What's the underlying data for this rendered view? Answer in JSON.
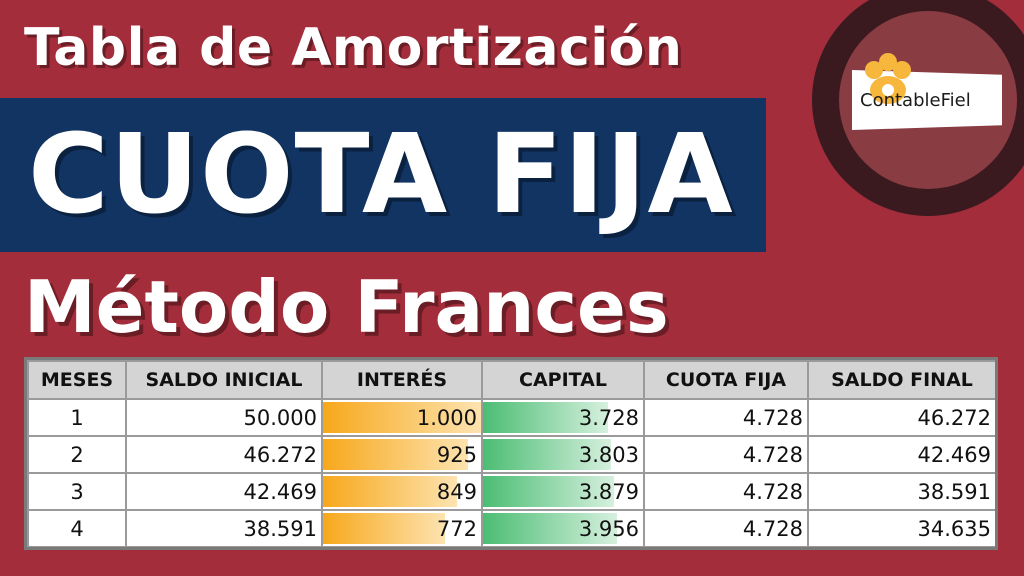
{
  "title_top": "Tabla de Amortización",
  "banner": "CUOTA FIJA",
  "title_bottom": "Método Frances",
  "logo": {
    "text": "ContableFiel",
    "icon": "hand-icon"
  },
  "colors": {
    "background": "#a32d3a",
    "banner": "#123463",
    "header_gray": "#d4d4d4",
    "interest_bar": "#f7a81b",
    "capital_bar": "#4bbd73"
  },
  "table": {
    "headers": [
      "MESES",
      "SALDO INICIAL",
      "INTERÉS",
      "CAPITAL",
      "CUOTA FIJA",
      "SALDO FINAL"
    ],
    "rows": [
      {
        "mes": "1",
        "saldo_inicial": "50.000",
        "interes": "1.000",
        "capital": "3.728",
        "cuota": "4.728",
        "saldo_final": "46.272",
        "interes_fill": 1.0,
        "capital_fill": 0.78
      },
      {
        "mes": "2",
        "saldo_inicial": "46.272",
        "interes": "925",
        "capital": "3.803",
        "cuota": "4.728",
        "saldo_final": "42.469",
        "interes_fill": 0.92,
        "capital_fill": 0.8
      },
      {
        "mes": "3",
        "saldo_inicial": "42.469",
        "interes": "849",
        "capital": "3.879",
        "cuota": "4.728",
        "saldo_final": "38.591",
        "interes_fill": 0.85,
        "capital_fill": 0.82
      },
      {
        "mes": "4",
        "saldo_inicial": "38.591",
        "interes": "772",
        "capital": "3.956",
        "cuota": "4.728",
        "saldo_final": "34.635",
        "interes_fill": 0.77,
        "capital_fill": 0.84
      }
    ]
  }
}
